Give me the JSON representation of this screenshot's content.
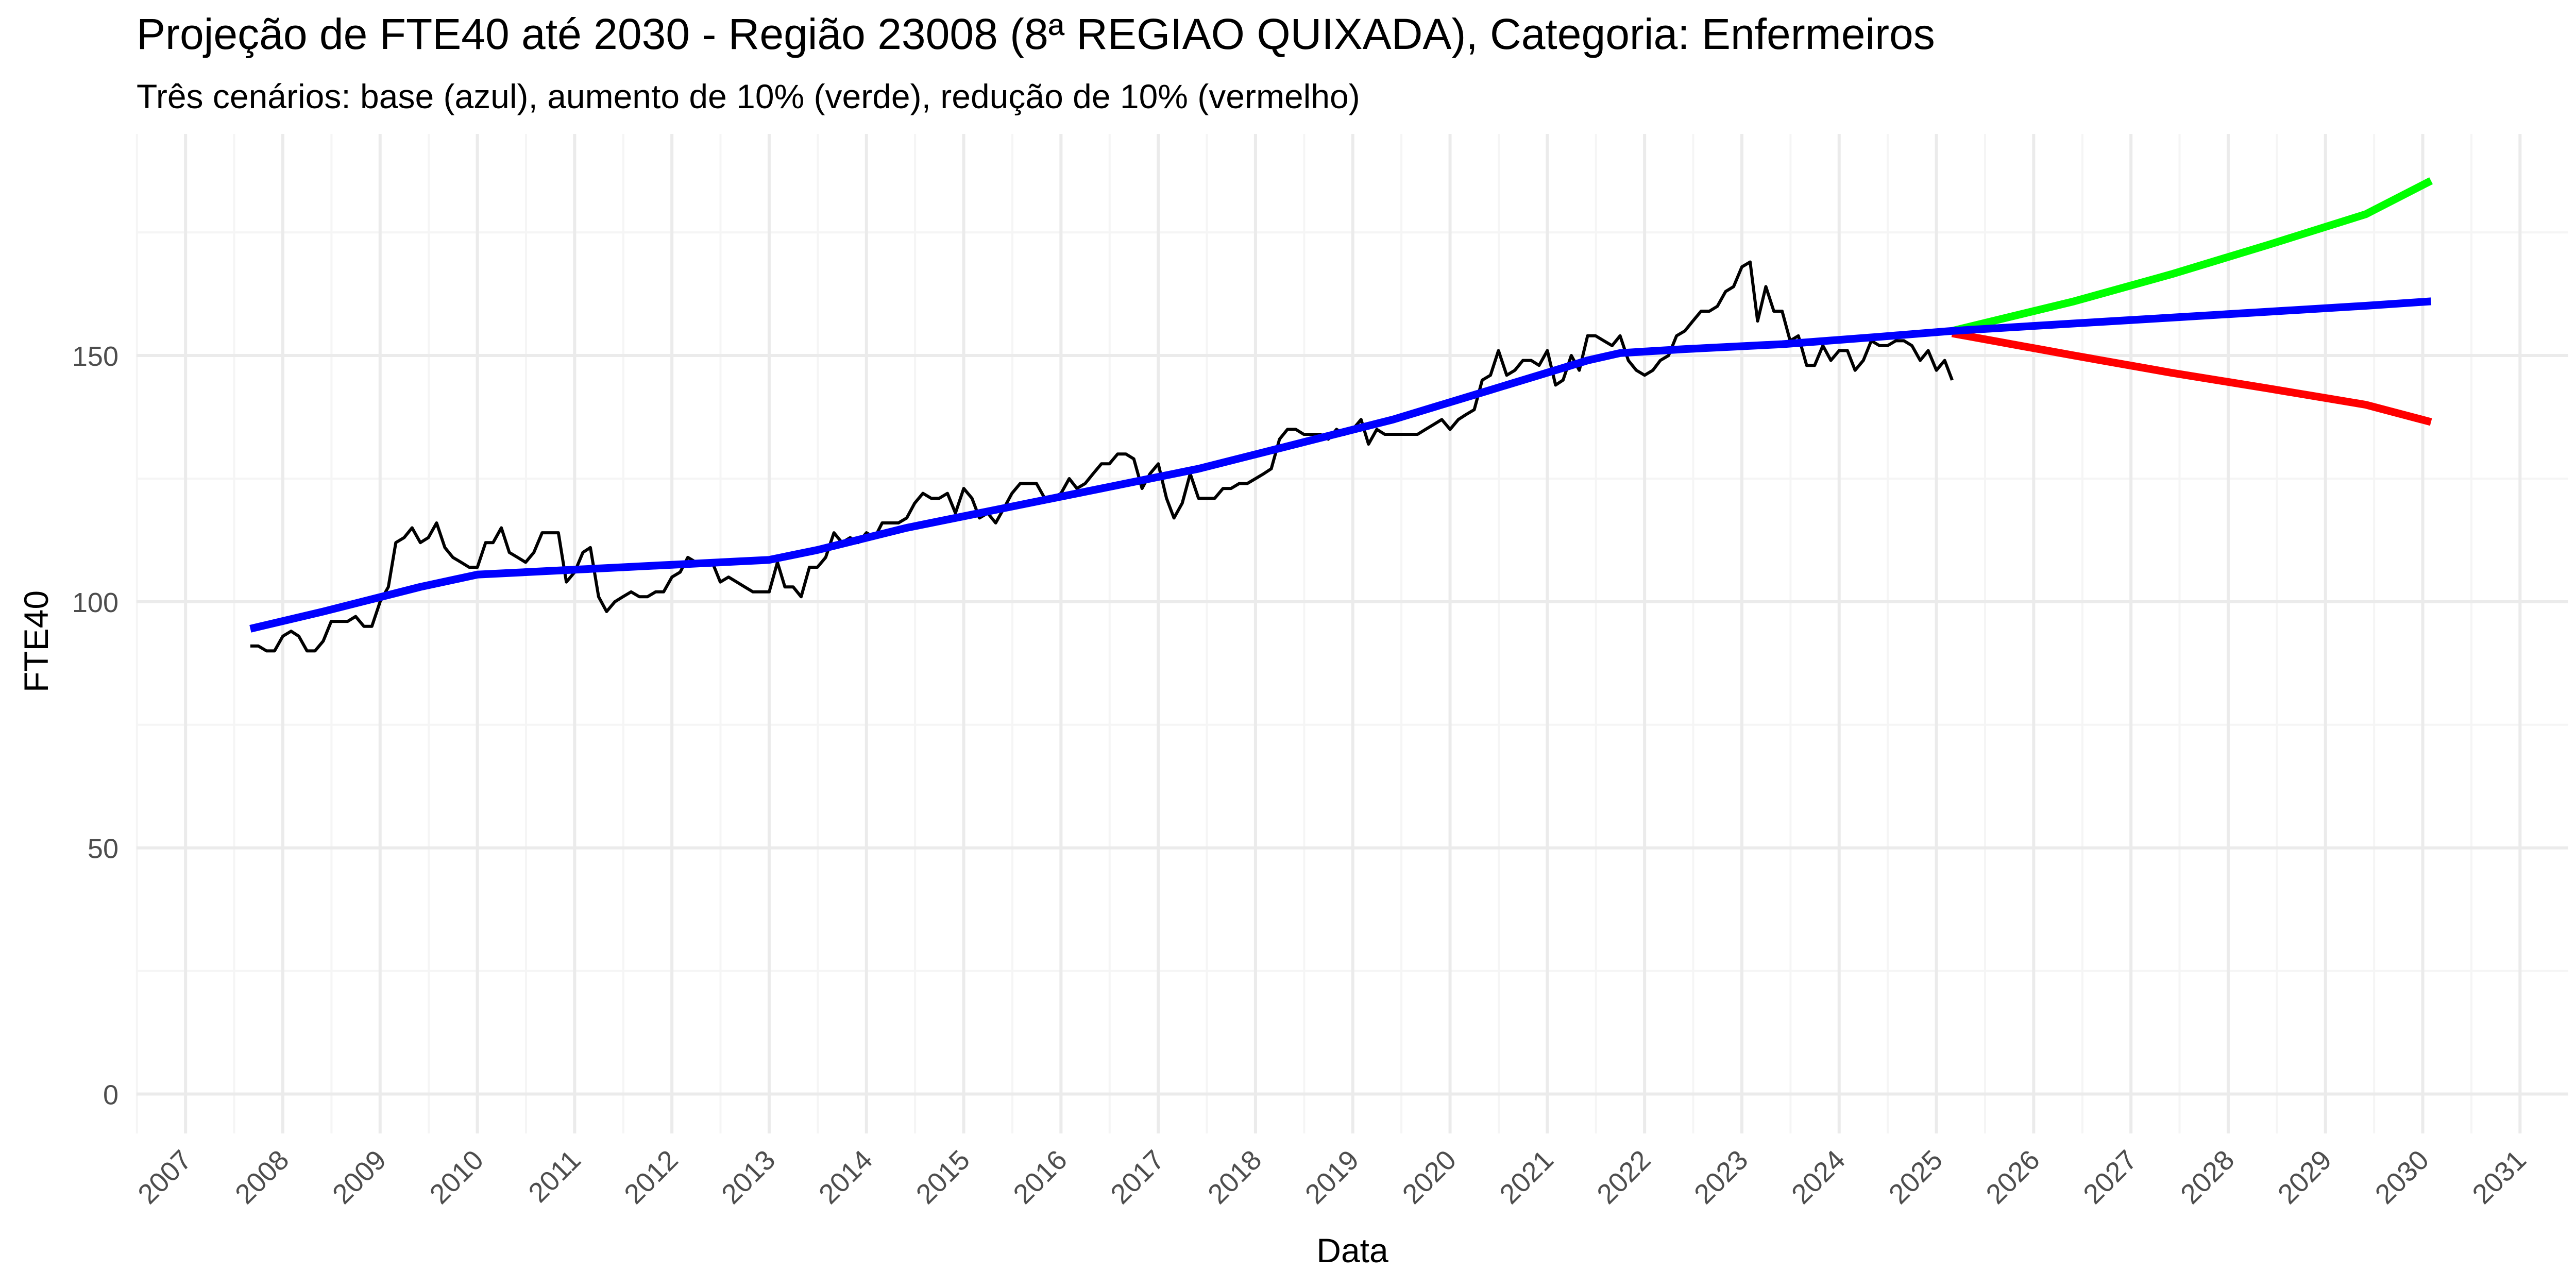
{
  "chart_data": {
    "type": "line",
    "title": "Projeção de FTE40 até 2030 - Região 23008 (8ª REGIAO QUIXADA), Categoria: Enfermeiros",
    "subtitle": "Três cenários: base (azul), aumento de 10% (verde), redução de 10% (vermelho)",
    "xlabel": "Data",
    "ylabel": "FTE40",
    "x_type": "date",
    "xlim": [
      "2006-07-01",
      "2031-07-01"
    ],
    "ylim": [
      -8,
      195
    ],
    "y_ticks": [
      0,
      50,
      100,
      150
    ],
    "x_ticks": [
      "2007",
      "2008",
      "2009",
      "2010",
      "2011",
      "2012",
      "2013",
      "2014",
      "2015",
      "2016",
      "2017",
      "2018",
      "2019",
      "2020",
      "2021",
      "2022",
      "2023",
      "2024",
      "2025",
      "2026",
      "2027",
      "2028",
      "2029",
      "2030",
      "2031"
    ],
    "grid": true,
    "legend": "none",
    "colors": {
      "observed": "#000000",
      "base": "#0000FF",
      "increase": "#00FF00",
      "decrease": "#FF0000",
      "grid_major": "#EBEBEB",
      "grid_minor": "#F5F5F5"
    },
    "series": [
      {
        "key": "observed",
        "points": [
          [
            "2007-09-01",
            91
          ],
          [
            "2007-10-01",
            91
          ],
          [
            "2007-11-01",
            90
          ],
          [
            "2007-12-01",
            90
          ],
          [
            "2008-01-01",
            93
          ],
          [
            "2008-02-01",
            94
          ],
          [
            "2008-03-01",
            93
          ],
          [
            "2008-04-01",
            90
          ],
          [
            "2008-05-01",
            90
          ],
          [
            "2008-06-01",
            92
          ],
          [
            "2008-07-01",
            96
          ],
          [
            "2008-08-01",
            96
          ],
          [
            "2008-09-01",
            96
          ],
          [
            "2008-10-01",
            97
          ],
          [
            "2008-11-01",
            95
          ],
          [
            "2008-12-01",
            95
          ],
          [
            "2009-01-01",
            100
          ],
          [
            "2009-02-01",
            103
          ],
          [
            "2009-03-01",
            112
          ],
          [
            "2009-04-01",
            113
          ],
          [
            "2009-05-01",
            115
          ],
          [
            "2009-06-01",
            112
          ],
          [
            "2009-07-01",
            113
          ],
          [
            "2009-08-01",
            116
          ],
          [
            "2009-09-01",
            111
          ],
          [
            "2009-10-01",
            109
          ],
          [
            "2009-11-01",
            108
          ],
          [
            "2009-12-01",
            107
          ],
          [
            "2010-01-01",
            107
          ],
          [
            "2010-02-01",
            112
          ],
          [
            "2010-03-01",
            112
          ],
          [
            "2010-04-01",
            115
          ],
          [
            "2010-05-01",
            110
          ],
          [
            "2010-06-01",
            109
          ],
          [
            "2010-07-01",
            108
          ],
          [
            "2010-08-01",
            110
          ],
          [
            "2010-09-01",
            114
          ],
          [
            "2010-10-01",
            114
          ],
          [
            "2010-11-01",
            114
          ],
          [
            "2010-12-01",
            104
          ],
          [
            "2011-01-01",
            106
          ],
          [
            "2011-02-01",
            110
          ],
          [
            "2011-03-01",
            111
          ],
          [
            "2011-04-01",
            101
          ],
          [
            "2011-05-01",
            98
          ],
          [
            "2011-06-01",
            100
          ],
          [
            "2011-07-01",
            101
          ],
          [
            "2011-08-01",
            102
          ],
          [
            "2011-09-01",
            101
          ],
          [
            "2011-10-01",
            101
          ],
          [
            "2011-11-01",
            102
          ],
          [
            "2011-12-01",
            102
          ],
          [
            "2012-01-01",
            105
          ],
          [
            "2012-02-01",
            106
          ],
          [
            "2012-03-01",
            109
          ],
          [
            "2012-04-01",
            108
          ],
          [
            "2012-05-01",
            108
          ],
          [
            "2012-06-01",
            108
          ],
          [
            "2012-07-01",
            104
          ],
          [
            "2012-08-01",
            105
          ],
          [
            "2012-09-01",
            104
          ],
          [
            "2012-10-01",
            103
          ],
          [
            "2012-11-01",
            102
          ],
          [
            "2012-12-01",
            102
          ],
          [
            "2013-01-01",
            102
          ],
          [
            "2013-02-01",
            108
          ],
          [
            "2013-03-01",
            103
          ],
          [
            "2013-04-01",
            103
          ],
          [
            "2013-05-01",
            101
          ],
          [
            "2013-06-01",
            107
          ],
          [
            "2013-07-01",
            107
          ],
          [
            "2013-08-01",
            109
          ],
          [
            "2013-09-01",
            114
          ],
          [
            "2013-10-01",
            112
          ],
          [
            "2013-11-01",
            113
          ],
          [
            "2013-12-01",
            112
          ],
          [
            "2014-01-01",
            114
          ],
          [
            "2014-02-01",
            113
          ],
          [
            "2014-03-01",
            116
          ],
          [
            "2014-04-01",
            116
          ],
          [
            "2014-05-01",
            116
          ],
          [
            "2014-06-01",
            117
          ],
          [
            "2014-07-01",
            120
          ],
          [
            "2014-08-01",
            122
          ],
          [
            "2014-09-01",
            121
          ],
          [
            "2014-10-01",
            121
          ],
          [
            "2014-11-01",
            122
          ],
          [
            "2014-12-01",
            118
          ],
          [
            "2015-01-01",
            123
          ],
          [
            "2015-02-01",
            121
          ],
          [
            "2015-03-01",
            117
          ],
          [
            "2015-04-01",
            118
          ],
          [
            "2015-05-01",
            116
          ],
          [
            "2015-06-01",
            119
          ],
          [
            "2015-07-01",
            122
          ],
          [
            "2015-08-01",
            124
          ],
          [
            "2015-09-01",
            124
          ],
          [
            "2015-10-01",
            124
          ],
          [
            "2015-11-01",
            121
          ],
          [
            "2015-12-01",
            121
          ],
          [
            "2016-01-01",
            122
          ],
          [
            "2016-02-01",
            125
          ],
          [
            "2016-03-01",
            123
          ],
          [
            "2016-04-01",
            124
          ],
          [
            "2016-05-01",
            126
          ],
          [
            "2016-06-01",
            128
          ],
          [
            "2016-07-01",
            128
          ],
          [
            "2016-08-01",
            130
          ],
          [
            "2016-09-01",
            130
          ],
          [
            "2016-10-01",
            129
          ],
          [
            "2016-11-01",
            123
          ],
          [
            "2016-12-01",
            126
          ],
          [
            "2017-01-01",
            128
          ],
          [
            "2017-02-01",
            121
          ],
          [
            "2017-03-01",
            117
          ],
          [
            "2017-04-01",
            120
          ],
          [
            "2017-05-01",
            126
          ],
          [
            "2017-06-01",
            121
          ],
          [
            "2017-07-01",
            121
          ],
          [
            "2017-08-01",
            121
          ],
          [
            "2017-09-01",
            123
          ],
          [
            "2017-10-01",
            123
          ],
          [
            "2017-11-01",
            124
          ],
          [
            "2017-12-01",
            124
          ],
          [
            "2018-01-01",
            125
          ],
          [
            "2018-02-01",
            126
          ],
          [
            "2018-03-01",
            127
          ],
          [
            "2018-04-01",
            133
          ],
          [
            "2018-05-01",
            135
          ],
          [
            "2018-06-01",
            135
          ],
          [
            "2018-07-01",
            134
          ],
          [
            "2018-08-01",
            134
          ],
          [
            "2018-09-01",
            134
          ],
          [
            "2018-10-01",
            133
          ],
          [
            "2018-11-01",
            135
          ],
          [
            "2018-12-01",
            134
          ],
          [
            "2019-01-01",
            135
          ],
          [
            "2019-02-01",
            137
          ],
          [
            "2019-03-01",
            132
          ],
          [
            "2019-04-01",
            135
          ],
          [
            "2019-05-01",
            134
          ],
          [
            "2019-06-01",
            134
          ],
          [
            "2019-07-01",
            134
          ],
          [
            "2019-08-01",
            134
          ],
          [
            "2019-09-01",
            134
          ],
          [
            "2019-10-01",
            135
          ],
          [
            "2019-11-01",
            136
          ],
          [
            "2019-12-01",
            137
          ],
          [
            "2020-01-01",
            135
          ],
          [
            "2020-02-01",
            137
          ],
          [
            "2020-03-01",
            138
          ],
          [
            "2020-04-01",
            139
          ],
          [
            "2020-05-01",
            145
          ],
          [
            "2020-06-01",
            146
          ],
          [
            "2020-07-01",
            151
          ],
          [
            "2020-08-01",
            146
          ],
          [
            "2020-09-01",
            147
          ],
          [
            "2020-10-01",
            149
          ],
          [
            "2020-11-01",
            149
          ],
          [
            "2020-12-01",
            148
          ],
          [
            "2021-01-01",
            151
          ],
          [
            "2021-02-01",
            144
          ],
          [
            "2021-03-01",
            145
          ],
          [
            "2021-04-01",
            150
          ],
          [
            "2021-05-01",
            147
          ],
          [
            "2021-06-01",
            154
          ],
          [
            "2021-07-01",
            154
          ],
          [
            "2021-08-01",
            153
          ],
          [
            "2021-09-01",
            152
          ],
          [
            "2021-10-01",
            154
          ],
          [
            "2021-11-01",
            149
          ],
          [
            "2021-12-01",
            147
          ],
          [
            "2022-01-01",
            146
          ],
          [
            "2022-02-01",
            147
          ],
          [
            "2022-03-01",
            149
          ],
          [
            "2022-04-01",
            150
          ],
          [
            "2022-05-01",
            154
          ],
          [
            "2022-06-01",
            155
          ],
          [
            "2022-07-01",
            157
          ],
          [
            "2022-08-01",
            159
          ],
          [
            "2022-09-01",
            159
          ],
          [
            "2022-10-01",
            160
          ],
          [
            "2022-11-01",
            163
          ],
          [
            "2022-12-01",
            164
          ],
          [
            "2023-01-01",
            168
          ],
          [
            "2023-02-01",
            169
          ],
          [
            "2023-03-01",
            157
          ],
          [
            "2023-04-01",
            164
          ],
          [
            "2023-05-01",
            159
          ],
          [
            "2023-06-01",
            159
          ],
          [
            "2023-07-01",
            153
          ],
          [
            "2023-08-01",
            154
          ],
          [
            "2023-09-01",
            148
          ],
          [
            "2023-10-01",
            148
          ],
          [
            "2023-11-01",
            152
          ],
          [
            "2023-12-01",
            149
          ],
          [
            "2024-01-01",
            151
          ],
          [
            "2024-02-01",
            151
          ],
          [
            "2024-03-01",
            147
          ],
          [
            "2024-04-01",
            149
          ],
          [
            "2024-05-01",
            153
          ],
          [
            "2024-06-01",
            152
          ],
          [
            "2024-07-01",
            152
          ],
          [
            "2024-08-01",
            153
          ],
          [
            "2024-09-01",
            153
          ],
          [
            "2024-10-01",
            152
          ],
          [
            "2024-11-01",
            149
          ],
          [
            "2024-12-01",
            151
          ],
          [
            "2025-01-01",
            147
          ],
          [
            "2025-02-01",
            149
          ],
          [
            "2025-03-01",
            145
          ]
        ]
      },
      {
        "key": "base",
        "points": [
          [
            "2007-09-01",
            94.5
          ],
          [
            "2008-06-01",
            98
          ],
          [
            "2009-06-01",
            103
          ],
          [
            "2010-01-01",
            105.5
          ],
          [
            "2011-01-01",
            106.5
          ],
          [
            "2012-01-01",
            107.5
          ],
          [
            "2013-01-01",
            108.5
          ],
          [
            "2013-07-01",
            110.5
          ],
          [
            "2014-06-01",
            115
          ],
          [
            "2015-06-01",
            119
          ],
          [
            "2016-06-01",
            123
          ],
          [
            "2017-06-01",
            127
          ],
          [
            "2018-06-01",
            132
          ],
          [
            "2019-06-01",
            137
          ],
          [
            "2020-06-01",
            143
          ],
          [
            "2021-06-01",
            149
          ],
          [
            "2021-10-01",
            150.5
          ],
          [
            "2022-06-01",
            151.3
          ],
          [
            "2023-06-01",
            152.3
          ],
          [
            "2024-06-01",
            153.8
          ],
          [
            "2025-03-01",
            155
          ],
          [
            "2026-06-01",
            156.5
          ],
          [
            "2027-06-01",
            157.7
          ],
          [
            "2028-06-01",
            158.9
          ],
          [
            "2029-06-01",
            160.1
          ],
          [
            "2030-02-01",
            161
          ]
        ]
      },
      {
        "key": "increase",
        "points": [
          [
            "2025-03-01",
            155
          ],
          [
            "2026-06-01",
            161
          ],
          [
            "2027-06-01",
            166.5
          ],
          [
            "2028-06-01",
            172.5
          ],
          [
            "2029-06-01",
            178.7
          ],
          [
            "2030-02-01",
            185.5
          ]
        ]
      },
      {
        "key": "decrease",
        "points": [
          [
            "2025-03-01",
            154.5
          ],
          [
            "2026-06-01",
            150
          ],
          [
            "2027-06-01",
            146.5
          ],
          [
            "2028-06-01",
            143.3
          ],
          [
            "2029-06-01",
            140
          ],
          [
            "2030-02-01",
            136.5
          ]
        ]
      }
    ]
  }
}
